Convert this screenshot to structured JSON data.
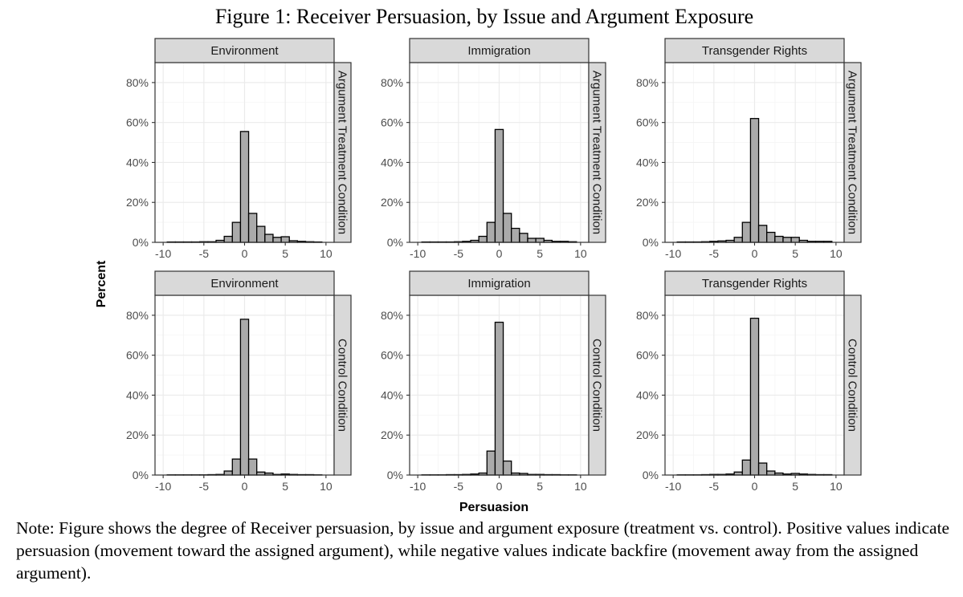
{
  "title": "Figure 1: Receiver Persuasion, by Issue and Argument Exposure",
  "note": "Note: Figure shows the degree of Receiver persuasion, by issue and argument exposure (treatment vs. control). Positive values indicate persuasion (movement toward the assigned argument), while negative values indicate backfire (movement away from the assigned argument).",
  "chart_data": {
    "type": "bar",
    "subtype": "faceted histogram",
    "xlabel": "Persuasion",
    "ylabel": "Percent",
    "xlim": [
      -10,
      10
    ],
    "ylim": [
      0,
      90
    ],
    "x_ticks": [
      -10,
      -5,
      0,
      5,
      10
    ],
    "x_tick_labels": [
      "-10",
      "-5",
      "0",
      "5",
      "10"
    ],
    "y_ticks": [
      0,
      20,
      40,
      60,
      80
    ],
    "y_tick_labels": [
      "0%",
      "20%",
      "40%",
      "60%",
      "80%"
    ],
    "bin_width": 1,
    "bins": [
      -9,
      -8,
      -7,
      -6,
      -5,
      -4,
      -3,
      -2,
      -1,
      0,
      1,
      2,
      3,
      4,
      5,
      6,
      7,
      8,
      9
    ],
    "rows": [
      "Argument Treatment Condition",
      "Control Condition"
    ],
    "columns": [
      "Environment",
      "Immigration",
      "Transgender Rights"
    ],
    "grid": true,
    "panels": [
      {
        "issue": "Environment",
        "condition": "Argument Treatment Condition",
        "values": [
          0.2,
          0.2,
          0.2,
          0.2,
          0.3,
          0.3,
          1.0,
          3.0,
          10.0,
          55.5,
          14.5,
          8.0,
          4.0,
          2.5,
          2.8,
          0.8,
          0.5,
          0.3,
          0.2
        ]
      },
      {
        "issue": "Immigration",
        "condition": "Argument Treatment Condition",
        "values": [
          0.2,
          0.2,
          0.2,
          0.2,
          0.3,
          0.5,
          1.0,
          3.0,
          10.0,
          56.5,
          14.5,
          7.0,
          4.5,
          2.0,
          2.0,
          1.0,
          0.5,
          0.5,
          0.3
        ]
      },
      {
        "issue": "Transgender Rights",
        "condition": "Argument Treatment Condition",
        "values": [
          0.2,
          0.2,
          0.2,
          0.3,
          0.5,
          0.7,
          1.0,
          2.5,
          10.0,
          62.0,
          8.5,
          5.0,
          3.0,
          2.5,
          2.5,
          1.0,
          0.5,
          0.5,
          0.5
        ]
      },
      {
        "issue": "Environment",
        "condition": "Control Condition",
        "values": [
          0.1,
          0.1,
          0.1,
          0.1,
          0.1,
          0.2,
          0.3,
          2.0,
          8.0,
          78.0,
          8.0,
          1.5,
          1.0,
          0.3,
          0.5,
          0.3,
          0.2,
          0.2,
          0.1
        ]
      },
      {
        "issue": "Immigration",
        "condition": "Control Condition",
        "values": [
          0.1,
          0.1,
          0.1,
          0.2,
          0.2,
          0.3,
          0.5,
          1.0,
          12.0,
          76.5,
          7.0,
          1.0,
          0.8,
          0.3,
          0.3,
          0.2,
          0.2,
          0.1,
          0.1
        ]
      },
      {
        "issue": "Transgender Rights",
        "condition": "Control Condition",
        "values": [
          0.1,
          0.1,
          0.1,
          0.2,
          0.3,
          0.3,
          0.5,
          1.5,
          7.5,
          78.5,
          6.0,
          2.0,
          1.0,
          0.5,
          0.8,
          0.5,
          0.3,
          0.2,
          0.2
        ]
      }
    ]
  },
  "colors": {
    "bar_fill": "#aaaaaa",
    "bar_stroke": "#000000",
    "strip_fill": "#d9d9d9",
    "strip_stroke": "#333333",
    "grid_major": "#ebebeb",
    "grid_minor": "#f5f5f5",
    "panel_border": "#333333",
    "tick_text": "#4d4d4d"
  }
}
